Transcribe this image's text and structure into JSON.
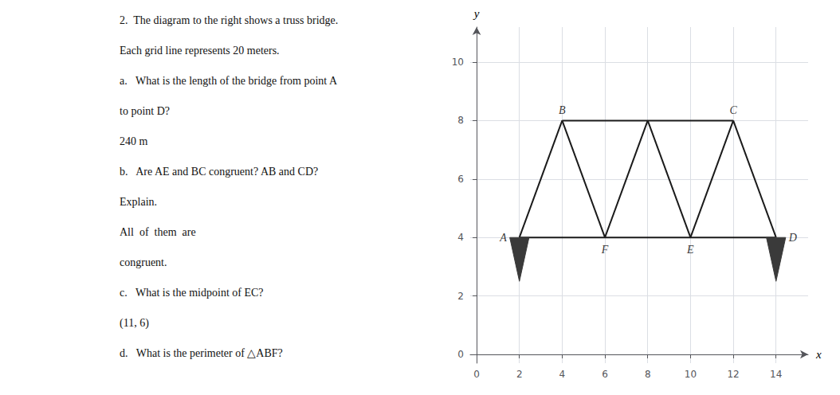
{
  "chart_data": {
    "type": "line",
    "xlabel": "x",
    "ylabel": "y",
    "xlim": [
      -0.3,
      15.5
    ],
    "ylim": [
      -0.3,
      11.2
    ],
    "xticks": [
      0,
      2,
      4,
      6,
      8,
      10,
      12,
      14
    ],
    "yticks": [
      0,
      2,
      4,
      6,
      8,
      10
    ],
    "grid": true,
    "series": [
      {
        "type": "line",
        "color": "#1a1a1a",
        "x": [
          2,
          4
        ],
        "values": [
          4,
          8
        ]
      },
      {
        "type": "line",
        "color": "#1a1a1a",
        "x": [
          4,
          6
        ],
        "values": [
          8,
          4
        ]
      },
      {
        "type": "line",
        "color": "#1a1a1a",
        "x": [
          6,
          8
        ],
        "values": [
          4,
          8
        ]
      },
      {
        "type": "line",
        "color": "#1a1a1a",
        "x": [
          8,
          10
        ],
        "values": [
          8,
          4
        ]
      },
      {
        "type": "line",
        "color": "#1a1a1a",
        "x": [
          10,
          12
        ],
        "values": [
          4,
          8
        ]
      },
      {
        "type": "line",
        "color": "#1a1a1a",
        "x": [
          12,
          14
        ],
        "values": [
          8,
          4
        ]
      },
      {
        "type": "line",
        "color": "#1a1a1a",
        "x": [
          2,
          14
        ],
        "values": [
          4,
          4
        ]
      },
      {
        "type": "line",
        "color": "#1a1a1a",
        "x": [
          4,
          12
        ],
        "values": [
          8,
          8
        ]
      },
      {
        "type": "polygon",
        "color": "#3a3a3a",
        "x": [
          1.55,
          2.45,
          2
        ],
        "values": [
          4,
          4,
          2.5
        ]
      },
      {
        "type": "polygon",
        "color": "#3a3a3a",
        "x": [
          13.55,
          14.45,
          14
        ],
        "values": [
          4,
          4,
          2.5
        ]
      }
    ],
    "annotations": [
      {
        "text": "A",
        "x": 2,
        "y": 4
      },
      {
        "text": "B",
        "x": 4,
        "y": 8
      },
      {
        "text": "C",
        "x": 12,
        "y": 8
      },
      {
        "text": "D",
        "x": 14,
        "y": 4
      },
      {
        "text": "E",
        "x": 10,
        "y": 4
      },
      {
        "text": "F",
        "x": 6,
        "y": 4
      },
      {
        "text": "2.  The diagram to the right shows a truss bridge."
      },
      {
        "text": "Each grid line represents 20 meters."
      },
      {
        "text": "a.   What is the length of the bridge from point A"
      },
      {
        "text": "to point D?"
      },
      {
        "text": "240 m"
      },
      {
        "text": "b.   Are AE and BC congruent? AB and CD?"
      },
      {
        "text": "Explain."
      },
      {
        "text": "All  of  them  are"
      },
      {
        "text": "congruent."
      },
      {
        "text": "c.   What is the midpoint of EC?"
      },
      {
        "text": "(11, 6)"
      },
      {
        "text": "d.   What is the perimeter of △ABF?"
      }
    ]
  }
}
